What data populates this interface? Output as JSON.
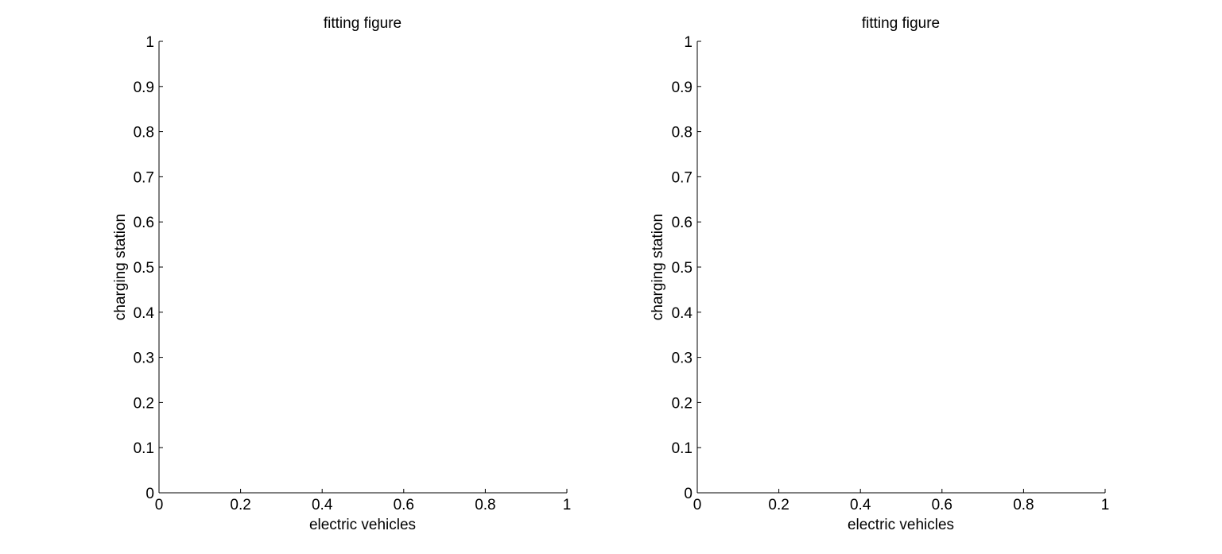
{
  "chart_data": [
    {
      "type": "line",
      "title": "fitting figure",
      "xlabel": "electric vehicles",
      "ylabel": "charging station",
      "xlim": [
        0,
        1
      ],
      "ylim": [
        0,
        1
      ],
      "xticks": [
        "0",
        "0.2",
        "0.4",
        "0.6",
        "0.8",
        "1"
      ],
      "yticks": [
        "0",
        "0.1",
        "0.2",
        "0.3",
        "0.4",
        "0.5",
        "0.6",
        "0.7",
        "0.8",
        "0.9",
        "1"
      ],
      "grid": false,
      "series": []
    },
    {
      "type": "line",
      "title": "fitting figure",
      "xlabel": "electric vehicles",
      "ylabel": "charging station",
      "xlim": [
        0,
        1
      ],
      "ylim": [
        0,
        1
      ],
      "xticks": [
        "0",
        "0.2",
        "0.4",
        "0.6",
        "0.8",
        "1"
      ],
      "yticks": [
        "0",
        "0.1",
        "0.2",
        "0.3",
        "0.4",
        "0.5",
        "0.6",
        "0.7",
        "0.8",
        "0.9",
        "1"
      ],
      "grid": false,
      "series": []
    }
  ],
  "colors": {
    "background": "#ffffff",
    "axis": "#000000"
  }
}
